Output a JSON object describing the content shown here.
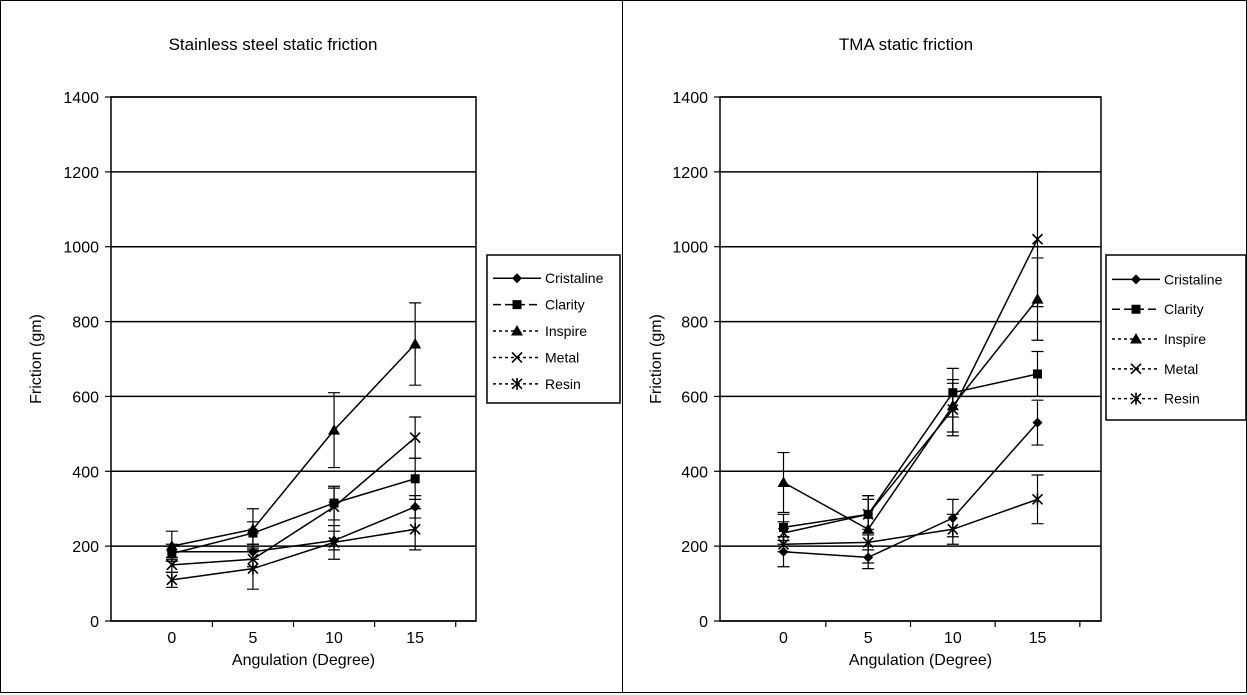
{
  "chart_data": [
    {
      "type": "line",
      "title": "Stainless steel static friction",
      "xlabel": "Angulation (Degree)",
      "ylabel": "Friction (gm)",
      "categories": [
        "0",
        "5",
        "10",
        "15"
      ],
      "ylim": [
        0,
        1400
      ],
      "yticks": [
        0,
        200,
        400,
        600,
        800,
        1000,
        1200,
        1400
      ],
      "grid": true,
      "legend_position": "right",
      "series": [
        {
          "name": "Cristaline",
          "marker": "diamond",
          "values": [
            185,
            185,
            215,
            305
          ],
          "error": [
            20,
            20,
            25,
            30
          ]
        },
        {
          "name": "Clarity",
          "marker": "square",
          "values": [
            180,
            235,
            315,
            380
          ],
          "error": [
            20,
            30,
            45,
            55
          ]
        },
        {
          "name": "Inspire",
          "marker": "triangle",
          "values": [
            200,
            245,
            510,
            740
          ],
          "error": [
            40,
            55,
            100,
            110
          ]
        },
        {
          "name": "Metal",
          "marker": "x",
          "values": [
            150,
            165,
            305,
            490
          ],
          "error": [
            20,
            20,
            50,
            55
          ]
        },
        {
          "name": "Resin",
          "marker": "asterisk",
          "values": [
            110,
            140,
            210,
            245
          ],
          "error": [
            20,
            55,
            45,
            55
          ]
        }
      ]
    },
    {
      "type": "line",
      "title": "TMA static friction",
      "xlabel": "Angulation (Degree)",
      "ylabel": "Friction (gm)",
      "categories": [
        "0",
        "5",
        "10",
        "15"
      ],
      "ylim": [
        0,
        1400
      ],
      "yticks": [
        0,
        200,
        400,
        600,
        800,
        1000,
        1200,
        1400
      ],
      "grid": true,
      "legend_position": "right",
      "series": [
        {
          "name": "Cristaline",
          "marker": "diamond",
          "values": [
            185,
            170,
            275,
            530
          ],
          "error": [
            40,
            30,
            50,
            60
          ]
        },
        {
          "name": "Clarity",
          "marker": "square",
          "values": [
            250,
            285,
            610,
            660
          ],
          "error": [
            35,
            40,
            65,
            60
          ]
        },
        {
          "name": "Inspire",
          "marker": "triangle",
          "values": [
            370,
            245,
            575,
            860
          ],
          "error": [
            80,
            90,
            70,
            110
          ]
        },
        {
          "name": "Metal",
          "marker": "x",
          "values": [
            235,
            285,
            565,
            1020
          ],
          "error": [
            30,
            50,
            70,
            180
          ]
        },
        {
          "name": "Resin",
          "marker": "asterisk",
          "values": [
            205,
            210,
            245,
            325
          ],
          "error": [
            20,
            20,
            40,
            65
          ]
        }
      ]
    }
  ]
}
